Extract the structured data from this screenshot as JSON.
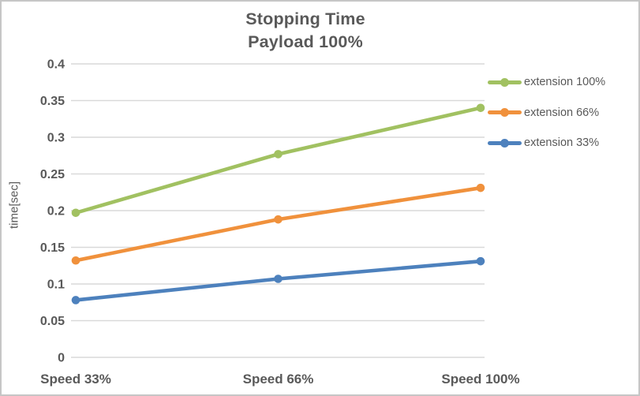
{
  "chart_data": {
    "type": "line",
    "title": "Stopping Time",
    "subtitle": "Payload 100%",
    "xlabel": "",
    "ylabel": "time[sec]",
    "categories": [
      "Speed 33%",
      "Speed 66%",
      "Speed 100%"
    ],
    "series": [
      {
        "name": "extension 100%",
        "color": "#A1C161",
        "values": [
          0.197,
          0.277,
          0.34
        ]
      },
      {
        "name": "extension 66%",
        "color": "#F0913C",
        "values": [
          0.132,
          0.188,
          0.231
        ]
      },
      {
        "name": "extension 33%",
        "color": "#4D81BD",
        "values": [
          0.078,
          0.107,
          0.131
        ]
      }
    ],
    "ylim": [
      0,
      0.4
    ],
    "ytick_step": 0.05,
    "yticks": [
      "0",
      "0.05",
      "0.1",
      "0.15",
      "0.2",
      "0.25",
      "0.3",
      "0.35",
      "0.4"
    ],
    "grid": true,
    "legend_position": "right",
    "marker": "circle",
    "colors": {
      "text": "#595959",
      "gridline": "#D9D9D9",
      "border": "#C6C6C6",
      "background": "#FFFFFF"
    }
  }
}
